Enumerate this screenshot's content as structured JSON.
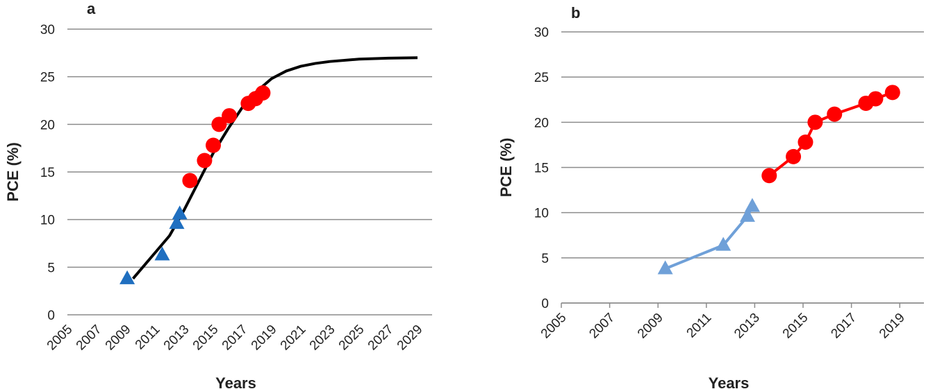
{
  "chart_data": [
    {
      "type": "line",
      "title": "a",
      "x_label": "Years",
      "y_label": "PCE (%)",
      "xlim": [
        2005,
        2030
      ],
      "xticks": [
        2005,
        2007,
        2009,
        2011,
        2013,
        2015,
        2017,
        2019,
        2021,
        2023,
        2025,
        2027,
        2029
      ],
      "ylim": [
        0,
        30
      ],
      "yticks": [
        0,
        5,
        10,
        15,
        20,
        25,
        30
      ],
      "grid": true,
      "x_axis_line": false,
      "series": [
        {
          "color": "#000000",
          "line": true,
          "marker": null,
          "x": [
            2009.5,
            2011,
            2012,
            2013,
            2014,
            2015,
            2016,
            2017,
            2018,
            2019,
            2020,
            2021,
            2022,
            2023,
            2025,
            2027,
            2029
          ],
          "values": [
            3.8,
            6.5,
            8.3,
            11,
            14,
            17,
            19.5,
            21.8,
            23.5,
            24.8,
            25.6,
            26.1,
            26.4,
            26.6,
            26.85,
            26.95,
            27.0
          ]
        },
        {
          "color": "#1f6fc0",
          "line": false,
          "marker": "triangle",
          "x": [
            2009.1,
            2011.5,
            2012.5,
            2012.7
          ],
          "values": [
            3.8,
            6.3,
            9.6,
            10.6
          ]
        },
        {
          "color": "#ff0000",
          "line": false,
          "marker": "circle",
          "x": [
            2013.4,
            2014.4,
            2015.0,
            2015.4,
            2016.1,
            2017.4,
            2017.9,
            2018.4
          ],
          "values": [
            14.1,
            16.2,
            17.8,
            20.0,
            20.9,
            22.2,
            22.7,
            23.3
          ]
        }
      ]
    },
    {
      "type": "line",
      "title": "b",
      "x_label": "Years",
      "y_label": "PCE (%)",
      "xlim": [
        2005,
        2020
      ],
      "xticks": [
        2005,
        2007,
        2009,
        2011,
        2013,
        2015,
        2017,
        2019
      ],
      "ylim": [
        0,
        30
      ],
      "yticks": [
        0,
        5,
        10,
        15,
        20,
        25,
        30
      ],
      "grid": true,
      "x_axis_line": true,
      "series": [
        {
          "color": "#6fa0d8",
          "line": true,
          "marker": "triangle",
          "x": [
            2009.3,
            2011.7,
            2012.7,
            2012.9
          ],
          "values": [
            3.8,
            6.4,
            9.6,
            10.7
          ]
        },
        {
          "color": "#ff0000",
          "line": true,
          "marker": "circle",
          "x": [
            2013.6,
            2014.6,
            2015.1,
            2015.5,
            2016.3,
            2017.6,
            2018.0,
            2018.7
          ],
          "values": [
            14.1,
            16.2,
            17.8,
            20.0,
            20.9,
            22.1,
            22.6,
            23.3
          ]
        }
      ]
    }
  ]
}
